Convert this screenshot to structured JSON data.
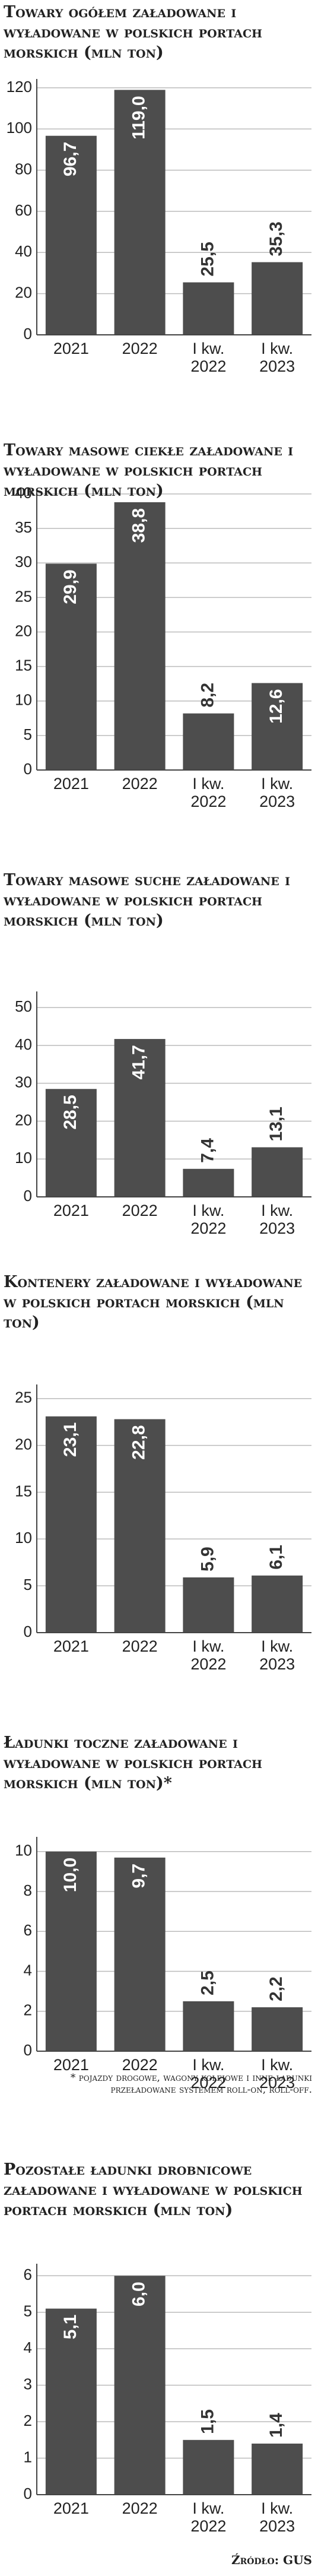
{
  "chart_data": [
    {
      "type": "bar",
      "title": "Towary ogółem załadowane i wyładowane w polskich portach morskich (mln ton)",
      "categories": [
        "2021",
        "2022",
        "I kw. 2022",
        "I kw. 2023"
      ],
      "values": [
        96.7,
        119.0,
        25.5,
        35.3
      ],
      "value_labels": [
        "96,7",
        "119,0",
        "25,5",
        "35,3"
      ],
      "color": "#4d4d4d",
      "ylim": [
        0,
        122
      ],
      "yticks": [
        0,
        20,
        40,
        60,
        80,
        100,
        120
      ],
      "grid": true
    },
    {
      "type": "bar",
      "title": "Towary masowe ciekłe załadowane i wyładowane w polskich portach morskich (mln ton)",
      "categories": [
        "2021",
        "2022",
        "I kw. 2022",
        "I kw. 2023"
      ],
      "values": [
        29.9,
        38.8,
        8.2,
        12.6
      ],
      "value_labels": [
        "29,9",
        "38,8",
        "8,2",
        "12,6"
      ],
      "color": "#4d4d4d",
      "ylim": [
        0,
        40
      ],
      "yticks": [
        0,
        5,
        10,
        15,
        20,
        25,
        30,
        35,
        40
      ],
      "grid": true
    },
    {
      "type": "bar",
      "title": "Towary masowe suche załadowane i wyładowane w polskich portach morskich (mln ton)",
      "categories": [
        "2021",
        "2022",
        "I kw. 2022",
        "I kw. 2023"
      ],
      "values": [
        28.5,
        41.7,
        7.4,
        13.1
      ],
      "value_labels": [
        "28,5",
        "41,7",
        "7,4",
        "13,1"
      ],
      "color": "#4d4d4d",
      "ylim": [
        0,
        53
      ],
      "yticks": [
        0,
        10,
        20,
        30,
        40,
        50
      ],
      "grid": true
    },
    {
      "type": "bar",
      "title": "Kontenery załadowane i wyładowane w polskich portach morskich (mln ton)",
      "categories": [
        "2021",
        "2022",
        "I kw. 2022",
        "I kw. 2023"
      ],
      "values": [
        23.1,
        22.8,
        5.9,
        6.1
      ],
      "value_labels": [
        "23,1",
        "22,8",
        "5,9",
        "6,1"
      ],
      "color": "#4d4d4d",
      "ylim": [
        0,
        26
      ],
      "yticks": [
        0,
        5,
        10,
        15,
        20,
        25
      ],
      "grid": true
    },
    {
      "type": "bar",
      "title": "Ładunki toczne załadowane i wyładowane w polskich portach morskich (mln ton)*",
      "categories": [
        "2021",
        "2022",
        "I kw. 2022",
        "I kw. 2023"
      ],
      "values": [
        10.0,
        9.7,
        2.5,
        2.2
      ],
      "value_labels": [
        "10,0",
        "9,7",
        "2,5",
        "2,2"
      ],
      "color": "#4d4d4d",
      "ylim": [
        0,
        10.5
      ],
      "yticks": [
        0,
        2,
        4,
        6,
        8,
        10
      ],
      "grid": true
    },
    {
      "type": "bar",
      "title": "Pozostałe ładunki drobnicowe załadowane i wyładowane w polskich portach morskich (mln ton)",
      "categories": [
        "2021",
        "2022",
        "I kw. 2022",
        "I kw. 2023"
      ],
      "values": [
        5.1,
        6.0,
        1.5,
        1.4
      ],
      "value_labels": [
        "5,1",
        "6,0",
        "1,5",
        "1,4"
      ],
      "color": "#4d4d4d",
      "ylim": [
        0,
        6.2
      ],
      "yticks": [
        0,
        1,
        2,
        3,
        4,
        5,
        6
      ],
      "grid": true
    }
  ],
  "footnote": "* pojazdy drogowe, wagony kolejowe i inne ładunki przeładowane systemem roll-on, roll-off.",
  "source": "Źródło: GUS"
}
